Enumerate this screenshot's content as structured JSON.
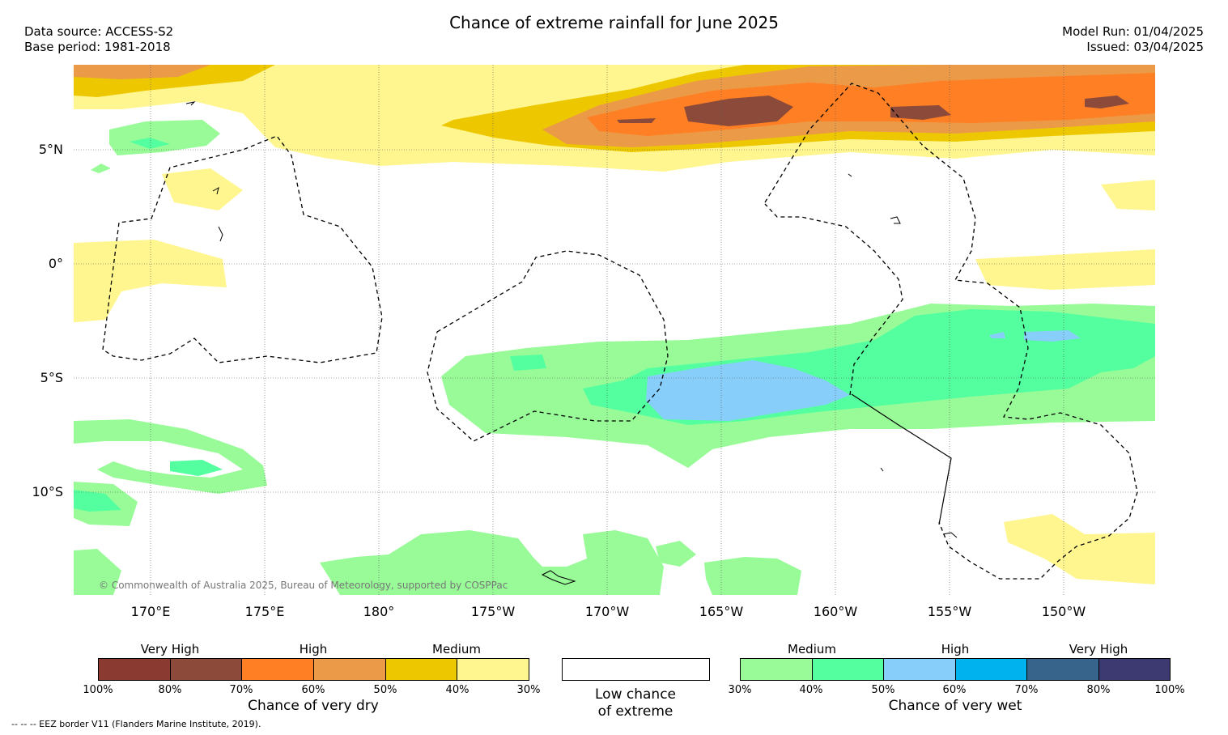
{
  "header": {
    "title": "Chance of extreme rainfall for June 2025",
    "data_source": "Data source: ACCESS-S2",
    "base_period": "Base period: 1981-2018",
    "model_run": "Model Run: 01/04/2025",
    "issued": "Issued: 03/04/2025"
  },
  "map": {
    "lat_labels": [
      "5°N",
      "0°",
      "5°S",
      "10°S"
    ],
    "lon_labels": [
      "170°E",
      "175°E",
      "180°",
      "175°W",
      "170°W",
      "165°W",
      "160°W",
      "155°W",
      "150°W"
    ],
    "copyright": "© Commonwealth of Australia 2025, Bureau of Meteorology, supported by COSPPac",
    "eez_note": "--  --  -- EEZ border V11 (Flanders Marine Institute, 2019)."
  },
  "legend": {
    "dry": {
      "categories": [
        "Very High",
        "High",
        "Medium"
      ],
      "percent_labels": [
        "100%",
        "80%",
        "70%",
        "60%",
        "50%",
        "40%",
        "30%"
      ],
      "colors": [
        "#8b3a32",
        "#8b4a3a",
        "#ff7f24",
        "#eb9a48",
        "#edc800",
        "#fff68f"
      ],
      "caption": "Chance of very dry"
    },
    "neutral": {
      "caption_line1": "Low chance",
      "caption_line2": "of extreme",
      "color": "#ffffff"
    },
    "wet": {
      "categories": [
        "Medium",
        "High",
        "Very High"
      ],
      "percent_labels": [
        "30%",
        "40%",
        "50%",
        "60%",
        "70%",
        "80%",
        "100%"
      ],
      "colors": [
        "#98fb98",
        "#54ff9f",
        "#87cefa",
        "#00b2ee",
        "#36648b",
        "#3d3a72"
      ],
      "caption": "Chance of very wet"
    }
  }
}
